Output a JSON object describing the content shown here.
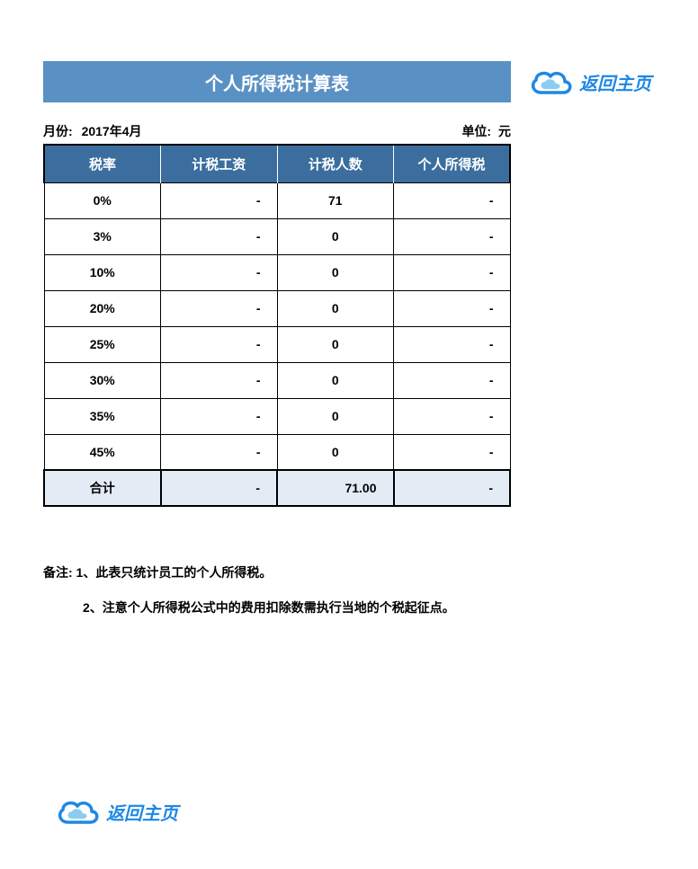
{
  "colors": {
    "title_bar_bg": "#5a91c4",
    "header_bg": "#3b6e9f",
    "total_bg": "#e3ecf5",
    "link_color": "#1e88e5",
    "cloud_outer": "#1e88e5",
    "cloud_inner": "#7ec8f0"
  },
  "title": "个人所得税计算表",
  "home_link_label": "返回主页",
  "meta": {
    "month_label": "月份:",
    "month_value": "2017年4月",
    "unit_label": "单位:",
    "unit_value": "元"
  },
  "table": {
    "columns": [
      "税率",
      "计税工资",
      "计税人数",
      "个人所得税"
    ],
    "rows": [
      {
        "rate": "0%",
        "wage": "-",
        "count": "71",
        "tax": "-"
      },
      {
        "rate": "3%",
        "wage": "-",
        "count": "0",
        "tax": "-"
      },
      {
        "rate": "10%",
        "wage": "-",
        "count": "0",
        "tax": "-"
      },
      {
        "rate": "20%",
        "wage": "-",
        "count": "0",
        "tax": "-"
      },
      {
        "rate": "25%",
        "wage": "-",
        "count": "0",
        "tax": "-"
      },
      {
        "rate": "30%",
        "wage": "-",
        "count": "0",
        "tax": "-"
      },
      {
        "rate": "35%",
        "wage": "-",
        "count": "0",
        "tax": "-"
      },
      {
        "rate": "45%",
        "wage": "-",
        "count": "0",
        "tax": "-"
      }
    ],
    "total": {
      "label": "合计",
      "wage": "-",
      "count": "71.00",
      "tax": "-"
    }
  },
  "notes": {
    "line1": "备注:  1、此表只统计员工的个人所得税。",
    "line2": "2、注意个人所得税公式中的费用扣除数需执行当地的个税起征点。"
  }
}
